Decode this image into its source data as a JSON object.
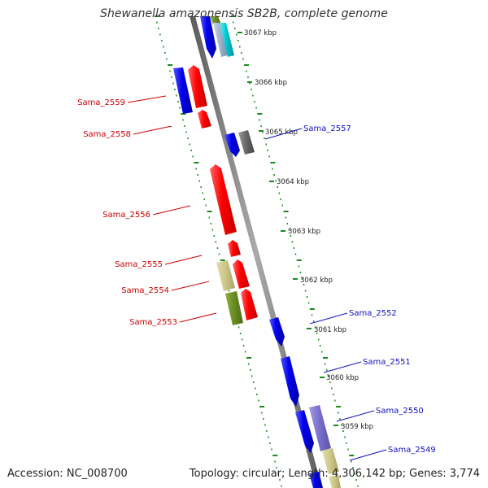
{
  "title": "Shewanella amazonensis SB2B, complete genome",
  "ticks": [
    "3067 kbp",
    "3066 kbp",
    "3065 kbp",
    "3064 kbp",
    "3063 kbp",
    "3062 kbp",
    "3061 kbp",
    "3060 kbp",
    "3059 kbp"
  ],
  "left_labels": [
    "Sama_2559",
    "Sama_2558",
    "Sama_2556",
    "Sama_2555",
    "Sama_2554",
    "Sama_2553"
  ],
  "right_labels": [
    "Sama_2557",
    "Sama_2552",
    "Sama_2551",
    "Sama_2550",
    "Sama_2549"
  ],
  "footer": {
    "accession": "Accession: NC_008700",
    "topology": "Topology: circular; Length: 4,306,142 bp; Genes: 3,774"
  },
  "colors": {
    "forward_strand": "#ff0000",
    "reverse_strand": "#0000ee",
    "backbone": "#808080",
    "tick_marks": "#1a8a1a",
    "right_label_text": "#1010c0",
    "left_label_text": "#cc0000"
  }
}
